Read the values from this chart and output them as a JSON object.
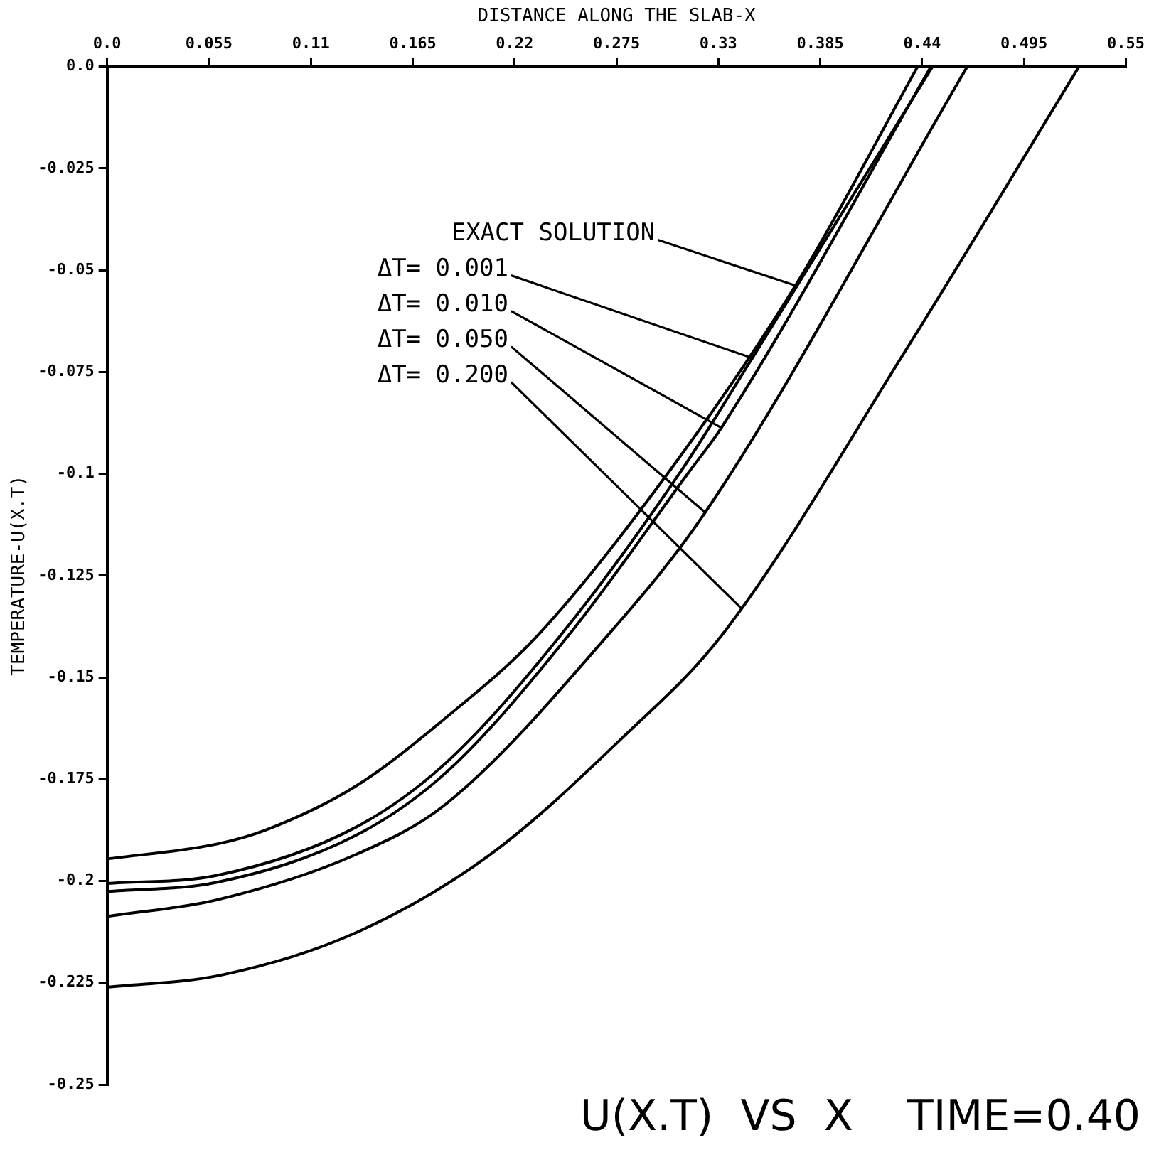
{
  "chart_data": {
    "type": "line",
    "title": "U(X.T)  VS  X    TIME=0.40",
    "xlabel": "DISTANCE ALONG THE SLAB-X",
    "ylabel": "TEMPERATURE-U(X.T)",
    "xlim": [
      0,
      0.55
    ],
    "xticks": [
      {
        "value": 0,
        "label": "0.0"
      },
      0.055,
      0.11,
      0.165,
      0.22,
      0.275,
      0.33,
      0.385,
      0.44,
      0.495,
      0.55
    ],
    "ylim": [
      -0.25,
      0
    ],
    "yticks": [
      -0.25,
      -0.225,
      -0.2,
      -0.175,
      -0.15,
      -0.125,
      -0.1,
      -0.075,
      -0.05,
      -0.025,
      {
        "value": 0,
        "label": "0.0"
      }
    ],
    "grid": false,
    "marker": "none",
    "line_style": "solid",
    "series": [
      {
        "color": "#000000",
        "x": [
          0,
          0.0595,
          0.0856,
          0.1343,
          0.1829,
          0.2322,
          0.3033,
          0.3716,
          0.4376
        ],
        "values": [
          -0.1946,
          -0.1909,
          -0.1875,
          -0.1767,
          -0.1599,
          -0.1398,
          -0.0995,
          -0.0538,
          0
        ]
      },
      {
        "color": "#000000",
        "x": [
          0,
          0.0595,
          0.1343,
          0.1829,
          0.2446,
          0.3096,
          0.3483,
          0.4456
        ],
        "values": [
          -0.2006,
          -0.1986,
          -0.1868,
          -0.171,
          -0.1398,
          -0.0995,
          -0.0716,
          0
        ]
      },
      {
        "color": "#000000",
        "x": [
          0,
          0.0595,
          0.1343,
          0.1829,
          0.2489,
          0.3142,
          0.3316,
          0.4448
        ],
        "values": [
          -0.2026,
          -0.2003,
          -0.1888,
          -0.1734,
          -0.1398,
          -0.0995,
          -0.0887,
          0
        ]
      },
      {
        "color": "#000000",
        "x": [
          0,
          0.0595,
          0.1343,
          0.1829,
          0.27,
          0.3229,
          0.4644
        ],
        "values": [
          -0.2087,
          -0.2046,
          -0.1935,
          -0.1811,
          -0.1398,
          -0.1095,
          0
        ]
      },
      {
        "color": "#000000",
        "x": [
          0,
          0.0617,
          0.1343,
          0.2068,
          0.2794,
          0.3316,
          0.4318,
          0.5247
        ],
        "values": [
          -0.2261,
          -0.2231,
          -0.2127,
          -0.1935,
          -0.1643,
          -0.1398,
          -0.0692,
          0
        ]
      }
    ],
    "annotations": [
      {
        "text": "EXACT SOLUTION",
        "x": 0.3716,
        "y": -0.0538
      },
      {
        "text": "ΔT= 0.001",
        "x": 0.3483,
        "y": -0.0716
      },
      {
        "text": "ΔT= 0.010",
        "x": 0.3316,
        "y": -0.0887
      },
      {
        "text": "ΔT= 0.050",
        "x": 0.3229,
        "y": -0.1095
      },
      {
        "text": "ΔT= 0.200",
        "x": 0.3425,
        "y": -0.1331
      }
    ]
  }
}
